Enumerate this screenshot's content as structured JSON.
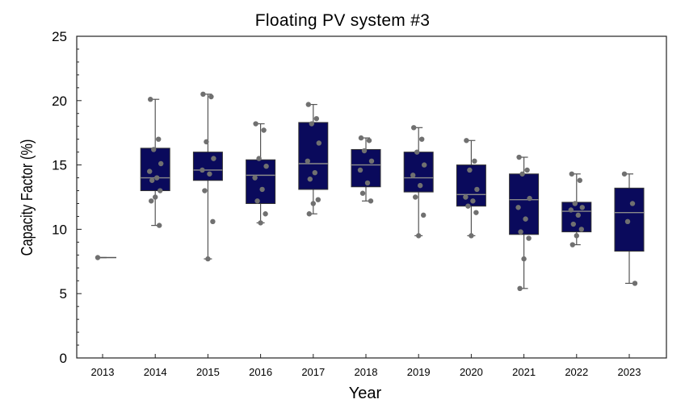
{
  "chart_data": {
    "type": "box",
    "title": "Floating PV system #3",
    "xlabel": "Year",
    "ylabel": "Capacity Factor (%)",
    "ylim": [
      0,
      25
    ],
    "yticks": [
      "0",
      "5",
      "10",
      "15",
      "20",
      "25"
    ],
    "categories": [
      "2013",
      "2014",
      "2015",
      "2016",
      "2017",
      "2018",
      "2019",
      "2020",
      "2021",
      "2022",
      "2023"
    ],
    "box_color": "#0a0a5c",
    "point_color": "#707070",
    "boxes": [
      {
        "year": "2013",
        "whisker_low": 7.8,
        "q1": 7.8,
        "median": 7.8,
        "q3": 7.8,
        "whisker_high": 7.8,
        "points": [
          7.8
        ]
      },
      {
        "year": "2014",
        "whisker_low": 10.3,
        "q1": 13.0,
        "median": 14.0,
        "q3": 16.3,
        "whisker_high": 20.1,
        "points": [
          20.1,
          17.0,
          16.2,
          15.1,
          14.5,
          14.0,
          13.8,
          13.0,
          12.5,
          12.2,
          10.3
        ]
      },
      {
        "year": "2015",
        "whisker_low": 7.7,
        "q1": 13.8,
        "median": 14.6,
        "q3": 16.0,
        "whisker_high": 20.5,
        "points": [
          20.5,
          20.3,
          16.8,
          15.5,
          14.6,
          14.3,
          13.0,
          10.6,
          7.7
        ]
      },
      {
        "year": "2016",
        "whisker_low": 10.5,
        "q1": 12.0,
        "median": 14.2,
        "q3": 15.4,
        "whisker_high": 18.2,
        "points": [
          18.2,
          17.7,
          15.5,
          14.9,
          14.0,
          13.1,
          12.2,
          11.2,
          10.5
        ]
      },
      {
        "year": "2017",
        "whisker_low": 11.2,
        "q1": 13.1,
        "median": 15.1,
        "q3": 18.3,
        "whisker_high": 19.7,
        "points": [
          19.7,
          18.6,
          18.2,
          16.7,
          15.3,
          14.4,
          13.9,
          12.3,
          12.0,
          11.2
        ]
      },
      {
        "year": "2018",
        "whisker_low": 12.2,
        "q1": 13.3,
        "median": 15.0,
        "q3": 16.2,
        "whisker_high": 17.1,
        "points": [
          17.1,
          16.9,
          16.1,
          15.3,
          14.6,
          13.6,
          12.8,
          12.2
        ]
      },
      {
        "year": "2019",
        "whisker_low": 9.5,
        "q1": 12.9,
        "median": 14.0,
        "q3": 16.0,
        "whisker_high": 17.9,
        "points": [
          17.9,
          17.0,
          16.0,
          15.0,
          14.2,
          13.4,
          12.5,
          11.1,
          9.5
        ]
      },
      {
        "year": "2020",
        "whisker_low": 9.5,
        "q1": 11.8,
        "median": 12.7,
        "q3": 15.0,
        "whisker_high": 16.9,
        "points": [
          16.9,
          15.3,
          14.6,
          13.1,
          12.5,
          12.2,
          11.8,
          11.3,
          9.5
        ]
      },
      {
        "year": "2021",
        "whisker_low": 5.4,
        "q1": 9.6,
        "median": 12.3,
        "q3": 14.3,
        "whisker_high": 15.6,
        "points": [
          15.6,
          14.6,
          14.3,
          12.4,
          11.7,
          10.8,
          9.8,
          9.3,
          7.7,
          5.4
        ]
      },
      {
        "year": "2022",
        "whisker_low": 8.8,
        "q1": 9.8,
        "median": 11.4,
        "q3": 12.1,
        "whisker_high": 14.3,
        "points": [
          14.3,
          13.8,
          12.0,
          11.7,
          11.5,
          11.1,
          10.4,
          10.0,
          9.5,
          8.8
        ]
      },
      {
        "year": "2023",
        "whisker_low": 5.8,
        "q1": 8.3,
        "median": 11.3,
        "q3": 13.2,
        "whisker_high": 14.3,
        "points": [
          14.3,
          12.0,
          10.6,
          5.8
        ]
      }
    ]
  }
}
